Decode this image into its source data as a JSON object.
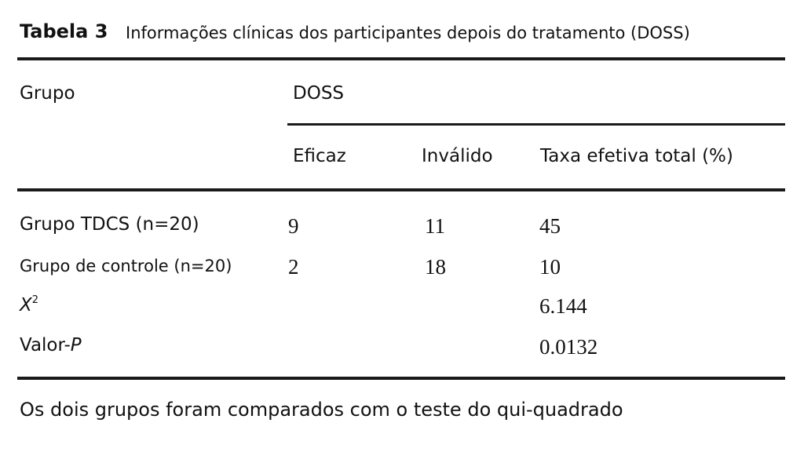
{
  "caption": {
    "label": "Tabela 3",
    "text": "Informações clínicas dos participantes depois do tratamento (DOSS)"
  },
  "headers": {
    "group": "Grupo",
    "doss": "DOSS",
    "effective": "Eficaz",
    "invalid": "Inválido",
    "total_rate": "Taxa efetiva total (%)"
  },
  "rows": [
    {
      "label": "Grupo TDCS (n=20)",
      "effective": "9",
      "invalid": "11",
      "total_rate": "45"
    },
    {
      "label": "Grupo de controle (n=20)",
      "effective": "2",
      "invalid": "18",
      "total_rate": "10"
    },
    {
      "label_base": "X",
      "label_sup": "2",
      "effective": "",
      "invalid": "",
      "total_rate": "6.144"
    },
    {
      "label_prefix": "Valor-",
      "label_italic": "P",
      "effective": "",
      "invalid": "",
      "total_rate": "0.0132"
    }
  ],
  "footnote": "Os dois grupos foram comparados com o teste do qui-quadrado"
}
